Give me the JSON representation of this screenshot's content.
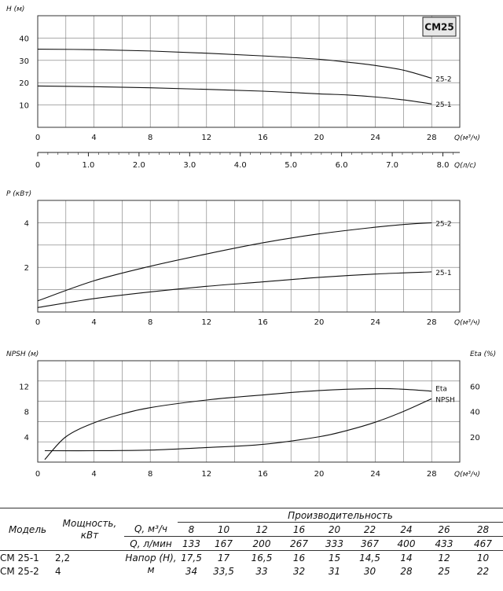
{
  "badge": "CM25",
  "chart_data": [
    {
      "type": "line",
      "ylabel": "H (м)",
      "xlabel": "Q(м³/ч)",
      "xlim": [
        0,
        30
      ],
      "ylim": [
        0,
        50
      ],
      "xticks": [
        "0",
        "4",
        "8",
        "12",
        "16",
        "20",
        "24",
        "28"
      ],
      "yticks": [
        "10",
        "20",
        "30",
        "40"
      ],
      "secondary_x": {
        "label": "Q(л/с)",
        "ticks": [
          "0",
          "1.0",
          "2.0",
          "3.0",
          "4.0",
          "5.0",
          "6.0",
          "7.0",
          "8.0"
        ]
      },
      "series": [
        {
          "name": "25-2",
          "x": [
            0,
            4,
            8,
            12,
            16,
            20,
            22,
            24,
            26,
            28
          ],
          "y": [
            35,
            34.8,
            34.2,
            33.2,
            32,
            30.5,
            29.2,
            27.7,
            25.6,
            22
          ]
        },
        {
          "name": "25-1",
          "x": [
            0,
            4,
            8,
            12,
            16,
            20,
            22,
            24,
            26,
            28
          ],
          "y": [
            18.5,
            18.2,
            17.7,
            17,
            16.2,
            15,
            14.5,
            13.6,
            12.3,
            10.5
          ]
        }
      ]
    },
    {
      "type": "line",
      "ylabel": "P (кВт)",
      "xlabel": "Q(м³/ч)",
      "xlim": [
        0,
        30
      ],
      "ylim": [
        0,
        5
      ],
      "xticks": [
        "0",
        "4",
        "8",
        "12",
        "16",
        "20",
        "24",
        "28"
      ],
      "yticks": [
        "2",
        "4"
      ],
      "series": [
        {
          "name": "25-2",
          "x": [
            0,
            4,
            8,
            12,
            16,
            20,
            24,
            26,
            28
          ],
          "y": [
            0.5,
            1.4,
            2.05,
            2.6,
            3.1,
            3.5,
            3.8,
            3.92,
            4.0
          ]
        },
        {
          "name": "25-1",
          "x": [
            0,
            4,
            8,
            12,
            16,
            20,
            24,
            28
          ],
          "y": [
            0.2,
            0.6,
            0.9,
            1.15,
            1.35,
            1.55,
            1.7,
            1.8
          ]
        }
      ]
    },
    {
      "type": "line",
      "ylabel": "NPSH (м)",
      "y2label": "Eta (%)",
      "xlabel": "Q(м³/ч)",
      "xlim": [
        0,
        30
      ],
      "ylim": [
        0,
        16
      ],
      "y2lim": [
        0,
        80
      ],
      "xticks": [
        "0",
        "4",
        "8",
        "12",
        "16",
        "20",
        "24",
        "28"
      ],
      "yticks": [
        "4",
        "8",
        "12"
      ],
      "y2ticks": [
        "20",
        "40",
        "60"
      ],
      "series": [
        {
          "name": "Eta",
          "axis": "right",
          "x": [
            0.5,
            2,
            4,
            6,
            8,
            12,
            16,
            20,
            24,
            26,
            28
          ],
          "y": [
            2,
            20,
            31,
            38,
            43,
            49,
            53,
            56.5,
            58,
            57.5,
            56
          ]
        },
        {
          "name": "NPSH",
          "axis": "left",
          "x": [
            0.5,
            4,
            8,
            12,
            16,
            20,
            22,
            24,
            26,
            28
          ],
          "y": [
            1.8,
            1.8,
            1.9,
            2.3,
            2.8,
            4.0,
            5.0,
            6.3,
            8.0,
            10.0
          ]
        }
      ]
    }
  ],
  "table": {
    "col_model": "Модель",
    "col_power": "Мощность, кВт",
    "col_perf": "Производительность",
    "q_m3_label": "Q, м³/ч",
    "q_lmin_label": "Q, л/мин",
    "head_label": "Напор (Н), м",
    "q_m3": [
      "8",
      "10",
      "12",
      "16",
      "20",
      "22",
      "24",
      "26",
      "28"
    ],
    "q_lmin": [
      "133",
      "167",
      "200",
      "267",
      "333",
      "367",
      "400",
      "433",
      "467"
    ],
    "rows": [
      {
        "model": "CM 25-1",
        "power": "2,2",
        "head": [
          "17,5",
          "17",
          "16,5",
          "16",
          "15",
          "14,5",
          "14",
          "12",
          "10"
        ]
      },
      {
        "model": "CM 25-2",
        "power": "4",
        "head": [
          "34",
          "33,5",
          "33",
          "32",
          "31",
          "30",
          "28",
          "25",
          "22"
        ]
      }
    ]
  }
}
